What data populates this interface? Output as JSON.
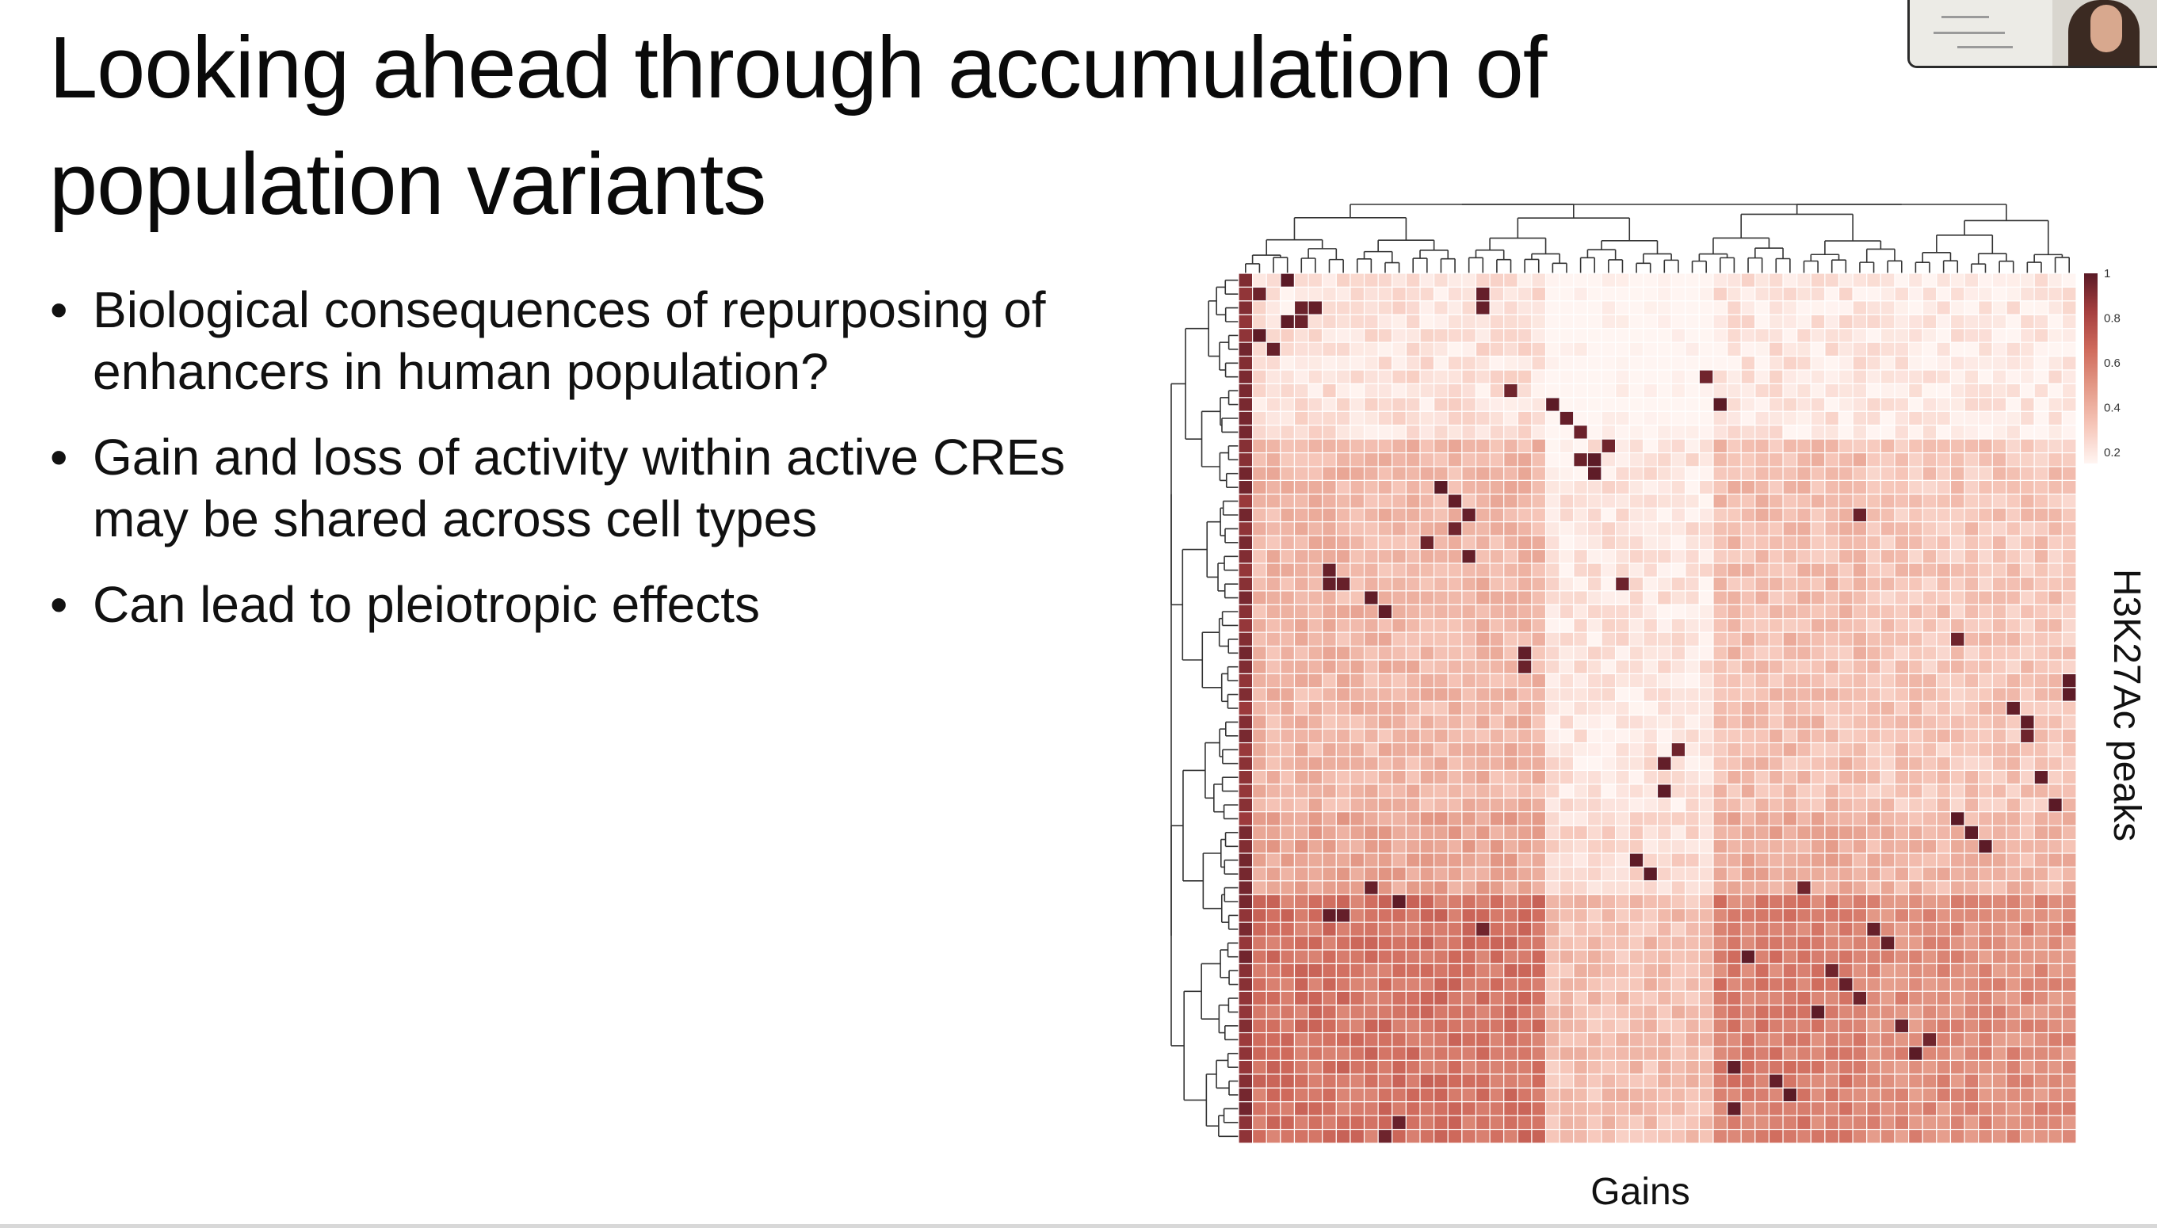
{
  "slide": {
    "title": "Looking ahead through accumulation of population variants",
    "bullets": [
      "Biological consequences of repurposing of enhancers in human population?",
      "Gain and loss of activity within active CREs may be shared across cell types",
      "Can lead to pleiotropic effects"
    ],
    "bullet_symbol": "•"
  },
  "chart_data": {
    "type": "heatmap",
    "title": "",
    "xlabel": "Gains",
    "ylabel": "H3K27Ac peaks",
    "n_rows": 63,
    "n_cols": 60,
    "value_range": [
      0.15,
      1
    ],
    "colorbar": {
      "ticks": [
        "1",
        "0.8",
        "0.6",
        "0.4",
        "0.2"
      ],
      "tick_values": [
        1,
        0.8,
        0.6,
        0.4,
        0.2
      ],
      "colors": [
        "#fff5f2",
        "#f6c6b9",
        "#e49a88",
        "#cf6a5c",
        "#a53f3f",
        "#5a1a26"
      ]
    },
    "row_dendrogram": true,
    "column_dendrogram": true,
    "row_blocks": [
      {
        "rows": [
          0,
          11
        ],
        "level": 0.2
      },
      {
        "rows": [
          12,
          38
        ],
        "level": 0.34
      },
      {
        "rows": [
          39,
          44
        ],
        "level": 0.4
      },
      {
        "rows": [
          45,
          62
        ],
        "level": 0.56
      }
    ],
    "column_blocks": [
      {
        "cols": [
          0,
          21
        ],
        "factor": 1.12
      },
      {
        "cols": [
          22,
          33
        ],
        "factor": 0.62
      },
      {
        "cols": [
          34,
          44
        ],
        "factor": 1.05
      },
      {
        "cols": [
          45,
          59
        ],
        "factor": 0.95
      }
    ],
    "first_column_level": 0.85,
    "high_value_cells": [
      [
        0,
        3
      ],
      [
        1,
        1
      ],
      [
        2,
        4
      ],
      [
        2,
        5
      ],
      [
        3,
        4
      ],
      [
        3,
        3
      ],
      [
        4,
        1
      ],
      [
        5,
        2
      ],
      [
        1,
        17
      ],
      [
        2,
        17
      ],
      [
        7,
        33
      ],
      [
        8,
        19
      ],
      [
        9,
        34
      ],
      [
        9,
        22
      ],
      [
        10,
        23
      ],
      [
        11,
        24
      ],
      [
        12,
        26
      ],
      [
        13,
        25
      ],
      [
        14,
        25
      ],
      [
        13,
        24
      ],
      [
        15,
        14
      ],
      [
        16,
        15
      ],
      [
        17,
        16
      ],
      [
        18,
        15
      ],
      [
        19,
        13
      ],
      [
        20,
        16
      ],
      [
        17,
        44
      ],
      [
        21,
        6
      ],
      [
        22,
        7
      ],
      [
        22,
        6
      ],
      [
        23,
        9
      ],
      [
        24,
        10
      ],
      [
        22,
        27
      ],
      [
        26,
        51
      ],
      [
        27,
        20
      ],
      [
        28,
        20
      ],
      [
        29,
        59
      ],
      [
        30,
        59
      ],
      [
        31,
        55
      ],
      [
        32,
        56
      ],
      [
        33,
        56
      ],
      [
        34,
        31
      ],
      [
        35,
        30
      ],
      [
        36,
        57
      ],
      [
        37,
        30
      ],
      [
        38,
        58
      ],
      [
        39,
        51
      ],
      [
        40,
        52
      ],
      [
        41,
        53
      ],
      [
        42,
        28
      ],
      [
        43,
        29
      ],
      [
        44,
        40
      ],
      [
        44,
        9
      ],
      [
        45,
        11
      ],
      [
        46,
        6
      ],
      [
        46,
        7
      ],
      [
        47,
        17
      ],
      [
        47,
        45
      ],
      [
        48,
        46
      ],
      [
        49,
        36
      ],
      [
        50,
        42
      ],
      [
        51,
        43
      ],
      [
        52,
        44
      ],
      [
        53,
        41
      ],
      [
        54,
        47
      ],
      [
        55,
        49
      ],
      [
        56,
        48
      ],
      [
        57,
        35
      ],
      [
        58,
        38
      ],
      [
        59,
        39
      ],
      [
        60,
        35
      ],
      [
        61,
        11
      ],
      [
        62,
        10
      ]
    ]
  }
}
